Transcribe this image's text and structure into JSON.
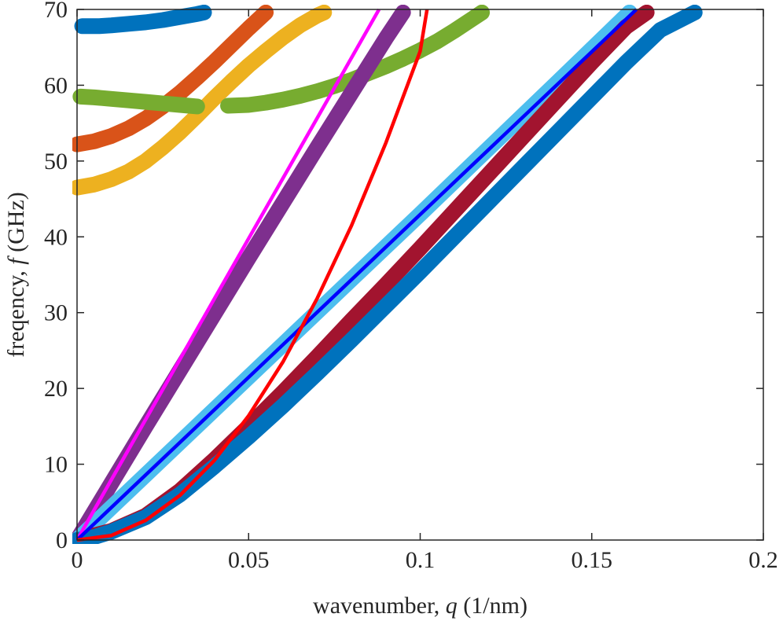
{
  "chart_data": {
    "type": "line",
    "title": "",
    "xlabel": {
      "prefix": "wavenumber,",
      "symbol": "q",
      "unit": "(1/nm)"
    },
    "ylabel": {
      "prefix": "freqency,",
      "symbol": "f",
      "unit": "(GHz)"
    },
    "xlim": [
      0,
      0.2
    ],
    "ylim": [
      0,
      70
    ],
    "xticks": [
      0,
      0.05,
      0.1,
      0.15,
      0.2
    ],
    "xtick_labels": [
      "0",
      "0.05",
      "0.1",
      "0.15",
      "0.2"
    ],
    "yticks": [
      0,
      10,
      20,
      30,
      40,
      50,
      60,
      70
    ],
    "ytick_labels": [
      "0",
      "10",
      "20",
      "30",
      "40",
      "50",
      "60",
      "70"
    ],
    "grid": false,
    "series": [
      {
        "name": "dots-blue-top",
        "style": "dots",
        "color": "#0072BD",
        "points": [
          [
            0.0015,
            67.8
          ],
          [
            0.0065,
            67.8
          ],
          [
            0.01,
            67.9
          ],
          [
            0.015,
            68.1
          ],
          [
            0.02,
            68.3
          ],
          [
            0.025,
            68.6
          ],
          [
            0.03,
            69.0
          ],
          [
            0.035,
            69.4
          ],
          [
            0.037,
            69.6
          ]
        ]
      },
      {
        "name": "dots-orange",
        "style": "dots",
        "color": "#D95319",
        "points": [
          [
            0.0,
            52.2
          ],
          [
            0.005,
            52.6
          ],
          [
            0.01,
            53.3
          ],
          [
            0.015,
            54.3
          ],
          [
            0.02,
            55.6
          ],
          [
            0.025,
            57.2
          ],
          [
            0.03,
            59.0
          ],
          [
            0.035,
            61.0
          ],
          [
            0.04,
            63.1
          ],
          [
            0.045,
            65.3
          ],
          [
            0.05,
            67.5
          ],
          [
            0.055,
            69.6
          ]
        ]
      },
      {
        "name": "dots-yellow",
        "style": "dots",
        "color": "#EDB120",
        "points": [
          [
            0.0,
            46.5
          ],
          [
            0.005,
            46.9
          ],
          [
            0.01,
            47.6
          ],
          [
            0.015,
            48.6
          ],
          [
            0.02,
            50.0
          ],
          [
            0.025,
            51.8
          ],
          [
            0.03,
            53.8
          ],
          [
            0.035,
            56.0
          ],
          [
            0.04,
            58.3
          ],
          [
            0.045,
            60.5
          ],
          [
            0.05,
            62.6
          ],
          [
            0.055,
            64.5
          ],
          [
            0.06,
            66.3
          ],
          [
            0.065,
            67.9
          ],
          [
            0.07,
            69.2
          ],
          [
            0.072,
            69.6
          ]
        ]
      },
      {
        "name": "dots-green-left",
        "style": "dots",
        "color": "#77AC30",
        "points": [
          [
            0.001,
            58.5
          ],
          [
            0.005,
            58.4
          ],
          [
            0.01,
            58.2
          ],
          [
            0.015,
            58.0
          ],
          [
            0.02,
            57.8
          ],
          [
            0.025,
            57.6
          ],
          [
            0.03,
            57.4
          ],
          [
            0.035,
            57.2
          ]
        ]
      },
      {
        "name": "dots-green-right",
        "style": "dots",
        "color": "#77AC30",
        "points": [
          [
            0.044,
            57.3
          ],
          [
            0.05,
            57.4
          ],
          [
            0.055,
            57.7
          ],
          [
            0.06,
            58.1
          ],
          [
            0.065,
            58.6
          ],
          [
            0.07,
            59.2
          ],
          [
            0.075,
            59.9
          ],
          [
            0.08,
            60.7
          ],
          [
            0.085,
            61.6
          ],
          [
            0.09,
            62.5
          ],
          [
            0.095,
            63.5
          ],
          [
            0.1,
            64.6
          ],
          [
            0.105,
            65.8
          ],
          [
            0.11,
            67.2
          ],
          [
            0.115,
            68.7
          ],
          [
            0.118,
            69.6
          ]
        ]
      },
      {
        "name": "dots-purple",
        "style": "dots",
        "color": "#7E2F8E",
        "points": [
          [
            0.0,
            0.0
          ],
          [
            0.01,
            7.5
          ],
          [
            0.02,
            15.0
          ],
          [
            0.03,
            22.4
          ],
          [
            0.04,
            29.8
          ],
          [
            0.05,
            37.2
          ],
          [
            0.06,
            44.5
          ],
          [
            0.07,
            51.8
          ],
          [
            0.08,
            59.0
          ],
          [
            0.09,
            66.2
          ],
          [
            0.095,
            69.6
          ]
        ]
      },
      {
        "name": "dots-lightblue",
        "style": "dots",
        "color": "#4DBEEE",
        "points": [
          [
            0.0,
            0.0
          ],
          [
            0.02,
            8.6
          ],
          [
            0.04,
            17.2
          ],
          [
            0.06,
            25.8
          ],
          [
            0.08,
            34.4
          ],
          [
            0.1,
            43.0
          ],
          [
            0.12,
            51.7
          ],
          [
            0.14,
            60.4
          ],
          [
            0.161,
            69.6
          ]
        ]
      },
      {
        "name": "dots-darkred",
        "style": "dots",
        "color": "#A2142F",
        "points": [
          [
            0.004,
            0.5
          ],
          [
            0.01,
            1.2
          ],
          [
            0.02,
            3.2
          ],
          [
            0.03,
            6.5
          ],
          [
            0.04,
            10.6
          ],
          [
            0.05,
            15.0
          ],
          [
            0.06,
            19.5
          ],
          [
            0.07,
            24.2
          ],
          [
            0.08,
            29.0
          ],
          [
            0.09,
            33.7
          ],
          [
            0.1,
            38.5
          ],
          [
            0.11,
            43.4
          ],
          [
            0.12,
            48.3
          ],
          [
            0.13,
            53.2
          ],
          [
            0.14,
            58.1
          ],
          [
            0.15,
            63.0
          ],
          [
            0.16,
            67.7
          ],
          [
            0.166,
            69.6
          ]
        ]
      },
      {
        "name": "dots-blue-main",
        "style": "dots",
        "color": "#0072BD",
        "points": [
          [
            0.0,
            0.0
          ],
          [
            0.005,
            0.4
          ],
          [
            0.01,
            1.1
          ],
          [
            0.02,
            3.0
          ],
          [
            0.03,
            6.0
          ],
          [
            0.04,
            9.7
          ],
          [
            0.05,
            13.6
          ],
          [
            0.06,
            17.7
          ],
          [
            0.07,
            22.0
          ],
          [
            0.08,
            26.4
          ],
          [
            0.09,
            30.9
          ],
          [
            0.1,
            35.4
          ],
          [
            0.11,
            40.0
          ],
          [
            0.12,
            44.6
          ],
          [
            0.13,
            49.2
          ],
          [
            0.14,
            53.8
          ],
          [
            0.15,
            58.4
          ],
          [
            0.16,
            63.0
          ],
          [
            0.17,
            67.3
          ],
          [
            0.18,
            69.6
          ]
        ]
      },
      {
        "name": "line-magenta",
        "style": "line",
        "color": "#FF00FF",
        "points": [
          [
            0.0,
            0.0
          ],
          [
            0.088,
            70.0
          ]
        ]
      },
      {
        "name": "line-blue",
        "style": "line",
        "color": "#0000FF",
        "points": [
          [
            0.0,
            0.0
          ],
          [
            0.163,
            70.0
          ]
        ]
      },
      {
        "name": "line-red",
        "style": "line",
        "color": "#FF0000",
        "points": [
          [
            0.0,
            0.0
          ],
          [
            0.01,
            0.6
          ],
          [
            0.02,
            2.6
          ],
          [
            0.03,
            5.9
          ],
          [
            0.04,
            10.5
          ],
          [
            0.05,
            16.4
          ],
          [
            0.06,
            23.5
          ],
          [
            0.07,
            31.9
          ],
          [
            0.08,
            41.5
          ],
          [
            0.09,
            52.4
          ],
          [
            0.1,
            64.5
          ],
          [
            0.102,
            70.0
          ]
        ]
      }
    ]
  }
}
